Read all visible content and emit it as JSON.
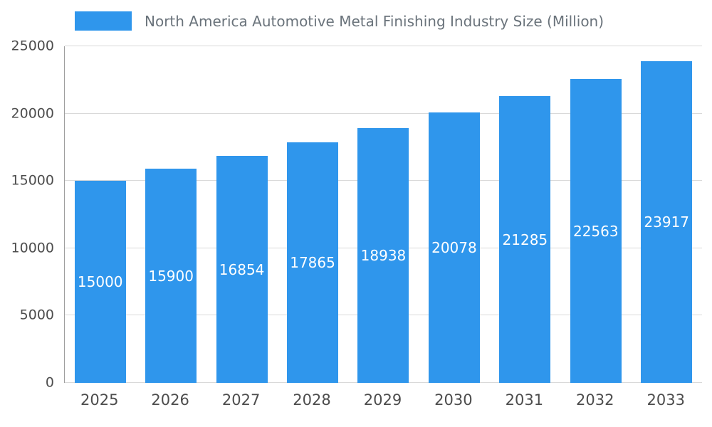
{
  "chart_data": {
    "type": "bar",
    "title": "North America Automotive Metal Finishing Industry Size (Million)",
    "categories": [
      "2025",
      "2026",
      "2027",
      "2028",
      "2029",
      "2030",
      "2031",
      "2032",
      "2033"
    ],
    "values": [
      15000,
      15900,
      16854,
      17865,
      18938,
      20078,
      21285,
      22563,
      23917
    ],
    "xlabel": "",
    "ylabel": "",
    "ylim": [
      0,
      25000
    ],
    "yticks": [
      0,
      5000,
      10000,
      15000,
      20000,
      25000
    ],
    "grid": true,
    "legend_position": "top",
    "bar_color": "#2f96ec",
    "value_label_color": "#ffffff"
  }
}
